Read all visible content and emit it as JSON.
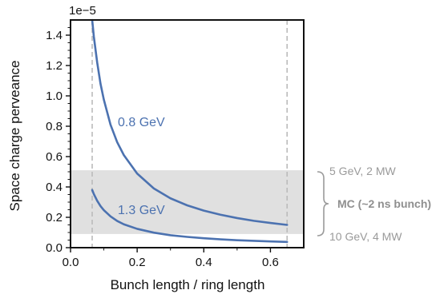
{
  "chart_data": {
    "type": "line",
    "xlabel": "Bunch length / ring length",
    "ylabel": "Space charge perveance",
    "y_scale_label": "1e−5",
    "xlim": [
      0.0,
      0.7
    ],
    "ylim": [
      0.0,
      1.5
    ],
    "xticks": [
      "0.0",
      "0.2",
      "0.4",
      "0.6"
    ],
    "yticks": [
      "0.0",
      "0.2",
      "0.4",
      "0.6",
      "0.8",
      "1.0",
      "1.2",
      "1.4"
    ],
    "grid": false,
    "series": [
      {
        "name": "0.8 GeV",
        "color": "#4c72b0",
        "x": [
          0.065,
          0.07,
          0.08,
          0.09,
          0.1,
          0.12,
          0.14,
          0.16,
          0.2,
          0.25,
          0.3,
          0.35,
          0.4,
          0.45,
          0.5,
          0.55,
          0.6,
          0.65
        ],
        "y": [
          1.5,
          1.39,
          1.22,
          1.08,
          0.975,
          0.81,
          0.695,
          0.61,
          0.488,
          0.39,
          0.325,
          0.279,
          0.244,
          0.217,
          0.195,
          0.177,
          0.163,
          0.15
        ]
      },
      {
        "name": "1.3 GeV",
        "color": "#4c72b0",
        "x": [
          0.065,
          0.07,
          0.08,
          0.09,
          0.1,
          0.12,
          0.14,
          0.16,
          0.2,
          0.25,
          0.3,
          0.35,
          0.4,
          0.45,
          0.5,
          0.55,
          0.6,
          0.65
        ],
        "y": [
          0.38,
          0.353,
          0.309,
          0.274,
          0.247,
          0.206,
          0.176,
          0.154,
          0.124,
          0.099,
          0.082,
          0.071,
          0.062,
          0.055,
          0.049,
          0.045,
          0.041,
          0.038
        ]
      }
    ],
    "vlines": [
      0.065,
      0.65
    ],
    "band": {
      "y0": 0.09,
      "y1": 0.51,
      "color": "#e0e0e0"
    },
    "annotations": {
      "top": "5 GeV, 2 MW",
      "middle": "MC (~2 ns bunch)",
      "bottom": "10 GeV, 4 MW"
    }
  }
}
